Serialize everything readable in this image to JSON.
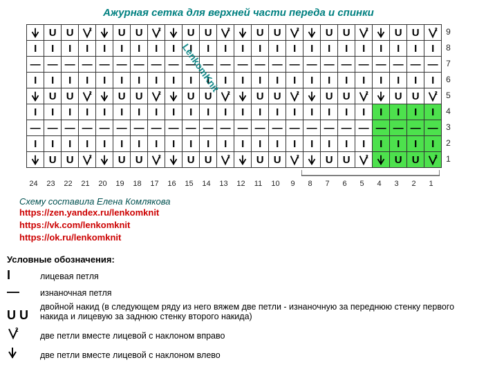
{
  "title": "Ажурная сетка для верхней части переда и спинки",
  "watermark": "LenkomKnit",
  "chart": {
    "cols": 24,
    "row_numbers": [
      9,
      8,
      7,
      6,
      5,
      4,
      3,
      2,
      1
    ],
    "col_numbers": [
      24,
      23,
      22,
      21,
      20,
      19,
      18,
      17,
      16,
      15,
      14,
      13,
      12,
      11,
      10,
      9,
      8,
      7,
      6,
      5,
      4,
      3,
      2,
      1
    ],
    "highlight_color": "#4de14d",
    "highlight": {
      "rows_from_bottom": [
        1,
        2,
        3,
        4
      ],
      "cols_from_right": [
        1,
        2,
        3,
        4
      ]
    },
    "repeat_bracket_cols_from_right": 8,
    "rows": [
      [
        "L",
        "U",
        "U",
        "R",
        "L",
        "U",
        "U",
        "R",
        "L",
        "U",
        "U",
        "R",
        "L",
        "U",
        "U",
        "R",
        "L",
        "U",
        "U",
        "R",
        "L",
        "U",
        "U",
        "R"
      ],
      [
        "I",
        "I",
        "I",
        "I",
        "I",
        "I",
        "I",
        "I",
        "I",
        "I",
        "I",
        "I",
        "I",
        "I",
        "I",
        "I",
        "I",
        "I",
        "I",
        "I",
        "I",
        "I",
        "I",
        "I"
      ],
      [
        "D",
        "D",
        "D",
        "D",
        "D",
        "D",
        "D",
        "D",
        "D",
        "D",
        "D",
        "D",
        "D",
        "D",
        "D",
        "D",
        "D",
        "D",
        "D",
        "D",
        "D",
        "D",
        "D",
        "D"
      ],
      [
        "I",
        "I",
        "I",
        "I",
        "I",
        "I",
        "I",
        "I",
        "I",
        "I",
        "I",
        "I",
        "I",
        "I",
        "I",
        "I",
        "I",
        "I",
        "I",
        "I",
        "I",
        "I",
        "I",
        "I"
      ],
      [
        "L",
        "U",
        "U",
        "R",
        "L",
        "U",
        "U",
        "R",
        "L",
        "U",
        "U",
        "R",
        "L",
        "U",
        "U",
        "R",
        "L",
        "U",
        "U",
        "R",
        "L",
        "U",
        "U",
        "R"
      ],
      [
        "I",
        "I",
        "I",
        "I",
        "I",
        "I",
        "I",
        "I",
        "I",
        "I",
        "I",
        "I",
        "I",
        "I",
        "I",
        "I",
        "I",
        "I",
        "I",
        "I",
        "I",
        "I",
        "I",
        "I"
      ],
      [
        "D",
        "D",
        "D",
        "D",
        "D",
        "D",
        "D",
        "D",
        "D",
        "D",
        "D",
        "D",
        "D",
        "D",
        "D",
        "D",
        "D",
        "D",
        "D",
        "D",
        "D",
        "D",
        "D",
        "D"
      ],
      [
        "I",
        "I",
        "I",
        "I",
        "I",
        "I",
        "I",
        "I",
        "I",
        "I",
        "I",
        "I",
        "I",
        "I",
        "I",
        "I",
        "I",
        "I",
        "I",
        "I",
        "I",
        "I",
        "I",
        "I"
      ],
      [
        "L",
        "U",
        "U",
        "R",
        "L",
        "U",
        "U",
        "R",
        "L",
        "U",
        "U",
        "R",
        "L",
        "U",
        "U",
        "R",
        "L",
        "U",
        "U",
        "R",
        "L",
        "U",
        "U",
        "R"
      ]
    ]
  },
  "symbols": {
    "I": {
      "glyph": "text",
      "text": "I"
    },
    "D": {
      "glyph": "text",
      "text": "—"
    },
    "U": {
      "glyph": "text",
      "text": "U"
    },
    "L": {
      "glyph": "svg_arrow_left"
    },
    "R": {
      "glyph": "svg_v2"
    }
  },
  "credits": {
    "author": "Схему составила Елена Комлякова",
    "links": [
      "https://zen.yandex.ru/lenkomknit",
      "https://vk.com/lenkomknit",
      "https://ok.ru/lenkomknit"
    ]
  },
  "legend": {
    "title": "Условные обозначения:",
    "items": [
      {
        "sym": "I",
        "text": "лицевая петля"
      },
      {
        "sym": "D",
        "text": "изнаночная петля"
      },
      {
        "sym": "UU",
        "text": "двойной накид (в следующем ряду из него вяжем две петли - изнаночную за переднюю стенку первого накида и лицевую за заднюю стенку второго накида)"
      },
      {
        "sym": "R",
        "text": "две петли вместе лицевой с наклоном вправо"
      },
      {
        "sym": "L",
        "text": "две петли вместе лицевой с наклоном влево"
      }
    ]
  }
}
